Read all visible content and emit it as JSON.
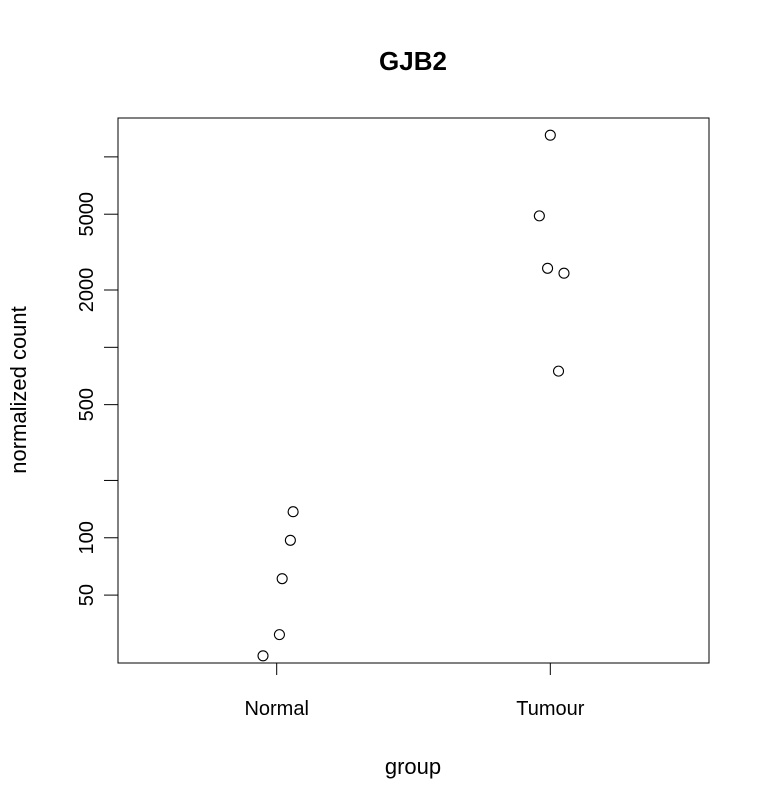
{
  "chart_data": {
    "type": "scatter",
    "title": "GJB2",
    "xlabel": "group",
    "ylabel": "normalized count",
    "categories": [
      "Normal",
      "Tumour"
    ],
    "y_scale": "log",
    "ylim": [
      22,
      16000
    ],
    "y_ticks": [
      50,
      100,
      200,
      500,
      1000,
      2000,
      5000,
      10000
    ],
    "y_tick_labels": [
      "50",
      "100",
      "",
      "500",
      "",
      "2000",
      "5000",
      ""
    ],
    "grid": false,
    "legend": "none",
    "series": [
      {
        "category": "Normal",
        "points": [
          {
            "jitter": 0.06,
            "y": 137
          },
          {
            "jitter": 0.05,
            "y": 97
          },
          {
            "jitter": 0.02,
            "y": 61
          },
          {
            "jitter": 0.01,
            "y": 31
          },
          {
            "jitter": -0.05,
            "y": 24
          }
        ]
      },
      {
        "category": "Tumour",
        "points": [
          {
            "jitter": 0.0,
            "y": 13000
          },
          {
            "jitter": -0.04,
            "y": 4900
          },
          {
            "jitter": -0.01,
            "y": 2600
          },
          {
            "jitter": 0.05,
            "y": 2450
          },
          {
            "jitter": 0.03,
            "y": 750
          }
        ]
      }
    ]
  }
}
